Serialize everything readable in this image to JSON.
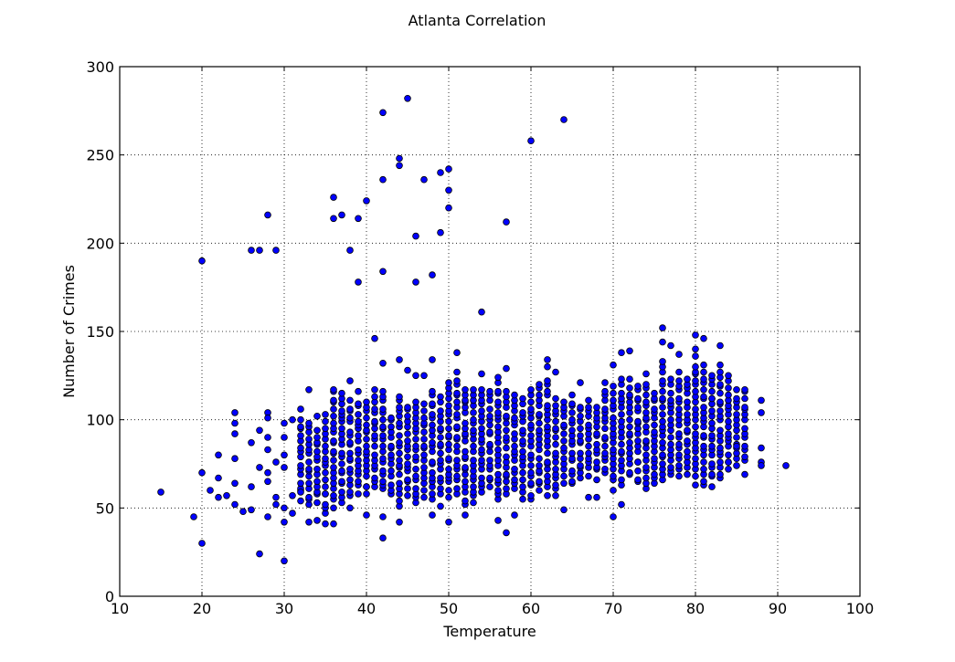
{
  "chart_data": {
    "type": "scatter",
    "title": "Atlanta Correlation",
    "xlabel": "Temperature",
    "ylabel": "Number of Crimes",
    "xlim": [
      10,
      100
    ],
    "ylim": [
      0,
      300
    ],
    "xticks": [
      "10",
      "20",
      "30",
      "40",
      "50",
      "60",
      "70",
      "80",
      "90",
      "100"
    ],
    "yticks": [
      "0",
      "50",
      "100",
      "150",
      "200",
      "250",
      "300"
    ],
    "grid": true,
    "marker_color": "#0000ff",
    "marker_edge_color": "#000000",
    "outliers": [
      {
        "x": 15,
        "y": 59
      },
      {
        "x": 19,
        "y": 45
      },
      {
        "x": 20,
        "y": 190
      },
      {
        "x": 20,
        "y": 30
      },
      {
        "x": 20,
        "y": 70
      },
      {
        "x": 21,
        "y": 60
      },
      {
        "x": 22,
        "y": 80
      },
      {
        "x": 22,
        "y": 67
      },
      {
        "x": 22,
        "y": 56
      },
      {
        "x": 23,
        "y": 57
      },
      {
        "x": 24,
        "y": 104
      },
      {
        "x": 24,
        "y": 98
      },
      {
        "x": 24,
        "y": 92
      },
      {
        "x": 24,
        "y": 78
      },
      {
        "x": 24,
        "y": 64
      },
      {
        "x": 24,
        "y": 52
      },
      {
        "x": 25,
        "y": 48
      },
      {
        "x": 26,
        "y": 196
      },
      {
        "x": 26,
        "y": 87
      },
      {
        "x": 26,
        "y": 62
      },
      {
        "x": 26,
        "y": 49
      },
      {
        "x": 27,
        "y": 196
      },
      {
        "x": 27,
        "y": 24
      },
      {
        "x": 27,
        "y": 94
      },
      {
        "x": 27,
        "y": 73
      },
      {
        "x": 28,
        "y": 216
      },
      {
        "x": 28,
        "y": 104
      },
      {
        "x": 28,
        "y": 101
      },
      {
        "x": 28,
        "y": 90
      },
      {
        "x": 28,
        "y": 83
      },
      {
        "x": 28,
        "y": 70
      },
      {
        "x": 28,
        "y": 65
      },
      {
        "x": 28,
        "y": 45
      },
      {
        "x": 29,
        "y": 196
      },
      {
        "x": 29,
        "y": 76
      },
      {
        "x": 29,
        "y": 56
      },
      {
        "x": 29,
        "y": 52
      },
      {
        "x": 30,
        "y": 20
      },
      {
        "x": 30,
        "y": 98
      },
      {
        "x": 30,
        "y": 90
      },
      {
        "x": 30,
        "y": 80
      },
      {
        "x": 30,
        "y": 73
      },
      {
        "x": 30,
        "y": 42
      },
      {
        "x": 30,
        "y": 50
      },
      {
        "x": 31,
        "y": 100
      },
      {
        "x": 31,
        "y": 57
      },
      {
        "x": 31,
        "y": 47
      },
      {
        "x": 32,
        "y": 106
      },
      {
        "x": 32,
        "y": 59
      },
      {
        "x": 33,
        "y": 117
      },
      {
        "x": 33,
        "y": 42
      },
      {
        "x": 34,
        "y": 102
      },
      {
        "x": 34,
        "y": 43
      },
      {
        "x": 35,
        "y": 41
      },
      {
        "x": 36,
        "y": 226
      },
      {
        "x": 36,
        "y": 214
      },
      {
        "x": 36,
        "y": 41
      },
      {
        "x": 37,
        "y": 216
      },
      {
        "x": 38,
        "y": 196
      },
      {
        "x": 38,
        "y": 122
      },
      {
        "x": 38,
        "y": 50
      },
      {
        "x": 39,
        "y": 214
      },
      {
        "x": 39,
        "y": 178
      },
      {
        "x": 39,
        "y": 116
      },
      {
        "x": 40,
        "y": 224
      },
      {
        "x": 40,
        "y": 46
      },
      {
        "x": 41,
        "y": 146
      },
      {
        "x": 42,
        "y": 274
      },
      {
        "x": 42,
        "y": 236
      },
      {
        "x": 42,
        "y": 184
      },
      {
        "x": 42,
        "y": 132
      },
      {
        "x": 42,
        "y": 33
      },
      {
        "x": 42,
        "y": 45
      },
      {
        "x": 44,
        "y": 248
      },
      {
        "x": 44,
        "y": 244
      },
      {
        "x": 44,
        "y": 134
      },
      {
        "x": 44,
        "y": 42
      },
      {
        "x": 45,
        "y": 282
      },
      {
        "x": 45,
        "y": 128
      },
      {
        "x": 46,
        "y": 204
      },
      {
        "x": 46,
        "y": 178
      },
      {
        "x": 46,
        "y": 125
      },
      {
        "x": 47,
        "y": 236
      },
      {
        "x": 47,
        "y": 125
      },
      {
        "x": 48,
        "y": 182
      },
      {
        "x": 48,
        "y": 134
      },
      {
        "x": 48,
        "y": 46
      },
      {
        "x": 49,
        "y": 240
      },
      {
        "x": 49,
        "y": 206
      },
      {
        "x": 49,
        "y": 51
      },
      {
        "x": 50,
        "y": 242
      },
      {
        "x": 50,
        "y": 230
      },
      {
        "x": 50,
        "y": 220
      },
      {
        "x": 50,
        "y": 42
      },
      {
        "x": 51,
        "y": 138
      },
      {
        "x": 51,
        "y": 127
      },
      {
        "x": 52,
        "y": 46
      },
      {
        "x": 54,
        "y": 161
      },
      {
        "x": 54,
        "y": 126
      },
      {
        "x": 56,
        "y": 43
      },
      {
        "x": 57,
        "y": 212
      },
      {
        "x": 57,
        "y": 129
      },
      {
        "x": 57,
        "y": 36
      },
      {
        "x": 58,
        "y": 46
      },
      {
        "x": 60,
        "y": 258
      },
      {
        "x": 62,
        "y": 134
      },
      {
        "x": 62,
        "y": 130
      },
      {
        "x": 63,
        "y": 127
      },
      {
        "x": 64,
        "y": 270
      },
      {
        "x": 64,
        "y": 49
      },
      {
        "x": 66,
        "y": 121
      },
      {
        "x": 67,
        "y": 56
      },
      {
        "x": 68,
        "y": 56
      },
      {
        "x": 70,
        "y": 131
      },
      {
        "x": 70,
        "y": 45
      },
      {
        "x": 71,
        "y": 138
      },
      {
        "x": 71,
        "y": 52
      },
      {
        "x": 72,
        "y": 139
      },
      {
        "x": 76,
        "y": 152
      },
      {
        "x": 76,
        "y": 144
      },
      {
        "x": 77,
        "y": 142
      },
      {
        "x": 78,
        "y": 137
      },
      {
        "x": 80,
        "y": 148
      },
      {
        "x": 81,
        "y": 146
      },
      {
        "x": 83,
        "y": 142
      },
      {
        "x": 85,
        "y": 85
      },
      {
        "x": 86,
        "y": 69
      },
      {
        "x": 88,
        "y": 111
      },
      {
        "x": 88,
        "y": 104
      },
      {
        "x": 88,
        "y": 84
      },
      {
        "x": 88,
        "y": 76
      },
      {
        "x": 88,
        "y": 74
      },
      {
        "x": 91,
        "y": 74
      }
    ],
    "cluster_ranges": [
      {
        "x": 32,
        "lo": 54,
        "hi": 102
      },
      {
        "x": 33,
        "lo": 50,
        "hi": 100
      },
      {
        "x": 34,
        "lo": 52,
        "hi": 96
      },
      {
        "x": 35,
        "lo": 45,
        "hi": 104
      },
      {
        "x": 36,
        "lo": 49,
        "hi": 120
      },
      {
        "x": 37,
        "lo": 52,
        "hi": 118
      },
      {
        "x": 38,
        "lo": 55,
        "hi": 112
      },
      {
        "x": 39,
        "lo": 57,
        "hi": 112
      },
      {
        "x": 40,
        "lo": 56,
        "hi": 112
      },
      {
        "x": 41,
        "lo": 60,
        "hi": 118
      },
      {
        "x": 42,
        "lo": 58,
        "hi": 118
      },
      {
        "x": 43,
        "lo": 56,
        "hi": 104
      },
      {
        "x": 44,
        "lo": 51,
        "hi": 116
      },
      {
        "x": 45,
        "lo": 56,
        "hi": 110
      },
      {
        "x": 46,
        "lo": 52,
        "hi": 112
      },
      {
        "x": 47,
        "lo": 55,
        "hi": 110
      },
      {
        "x": 48,
        "lo": 53,
        "hi": 118
      },
      {
        "x": 49,
        "lo": 57,
        "hi": 114
      },
      {
        "x": 50,
        "lo": 56,
        "hi": 122
      },
      {
        "x": 51,
        "lo": 58,
        "hi": 124
      },
      {
        "x": 52,
        "lo": 50,
        "hi": 120
      },
      {
        "x": 53,
        "lo": 52,
        "hi": 118
      },
      {
        "x": 54,
        "lo": 57,
        "hi": 120
      },
      {
        "x": 55,
        "lo": 60,
        "hi": 118
      },
      {
        "x": 56,
        "lo": 53,
        "hi": 125
      },
      {
        "x": 57,
        "lo": 56,
        "hi": 118
      },
      {
        "x": 58,
        "lo": 59,
        "hi": 116
      },
      {
        "x": 59,
        "lo": 55,
        "hi": 114
      },
      {
        "x": 60,
        "lo": 54,
        "hi": 118
      },
      {
        "x": 61,
        "lo": 58,
        "hi": 122
      },
      {
        "x": 62,
        "lo": 57,
        "hi": 124
      },
      {
        "x": 63,
        "lo": 55,
        "hi": 114
      },
      {
        "x": 64,
        "lo": 64,
        "hi": 112
      },
      {
        "x": 65,
        "lo": 62,
        "hi": 115
      },
      {
        "x": 66,
        "lo": 64,
        "hi": 110
      },
      {
        "x": 67,
        "lo": 68,
        "hi": 112
      },
      {
        "x": 68,
        "lo": 66,
        "hi": 110
      },
      {
        "x": 69,
        "lo": 68,
        "hi": 122
      },
      {
        "x": 70,
        "lo": 60,
        "hi": 120
      },
      {
        "x": 71,
        "lo": 62,
        "hi": 124
      },
      {
        "x": 72,
        "lo": 66,
        "hi": 124
      },
      {
        "x": 73,
        "lo": 63,
        "hi": 122
      },
      {
        "x": 74,
        "lo": 60,
        "hi": 126
      },
      {
        "x": 75,
        "lo": 62,
        "hi": 118
      },
      {
        "x": 76,
        "lo": 64,
        "hi": 134
      },
      {
        "x": 77,
        "lo": 66,
        "hi": 124
      },
      {
        "x": 78,
        "lo": 66,
        "hi": 128
      },
      {
        "x": 79,
        "lo": 67,
        "hi": 126
      },
      {
        "x": 80,
        "lo": 63,
        "hi": 140
      },
      {
        "x": 81,
        "lo": 62,
        "hi": 132
      },
      {
        "x": 82,
        "lo": 62,
        "hi": 128
      },
      {
        "x": 83,
        "lo": 65,
        "hi": 132
      },
      {
        "x": 84,
        "lo": 70,
        "hi": 126
      },
      {
        "x": 85,
        "lo": 72,
        "hi": 118
      },
      {
        "x": 86,
        "lo": 75,
        "hi": 120
      }
    ]
  }
}
